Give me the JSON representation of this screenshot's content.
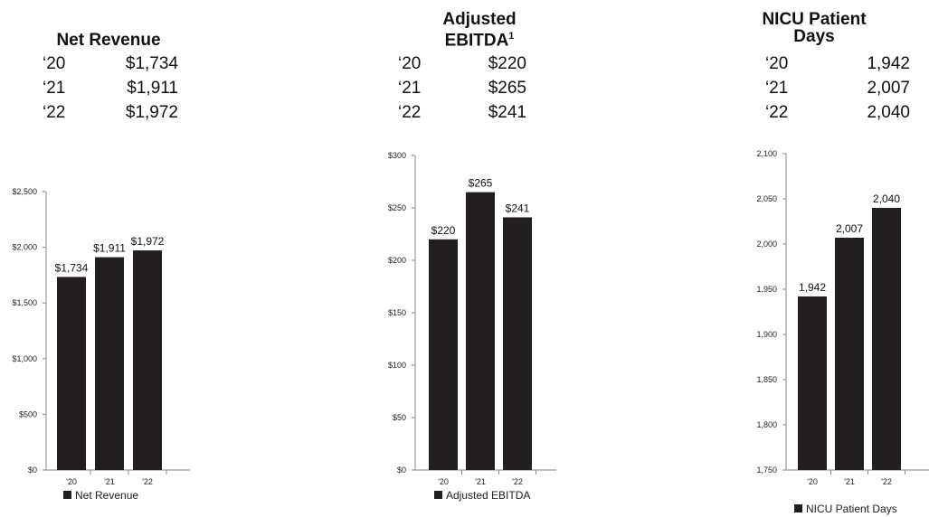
{
  "tables": [
    {
      "title": "Net Revenue",
      "rows": [
        {
          "year": "‘20",
          "value": "$1,734"
        },
        {
          "year": "‘21",
          "value": "$1,911"
        },
        {
          "year": "‘22",
          "value": "$1,972"
        }
      ]
    },
    {
      "title_line1": "Adjusted",
      "title_line2": "EBITDA",
      "title_sup": "1",
      "rows": [
        {
          "year": "‘20",
          "value": "$220"
        },
        {
          "year": "‘21",
          "value": "$265"
        },
        {
          "year": "‘22",
          "value": "$241"
        }
      ]
    },
    {
      "title_line1": "NICU Patient",
      "title_line2": "Days",
      "rows": [
        {
          "year": "‘20",
          "value": "1,942"
        },
        {
          "year": "‘21",
          "value": "2,007"
        },
        {
          "year": "‘22",
          "value": "2,040"
        }
      ]
    }
  ],
  "chart_data": [
    {
      "type": "bar",
      "categories": [
        "'20",
        "'21",
        "'22"
      ],
      "values": [
        1734,
        1911,
        1972
      ],
      "labels": [
        "$1,734",
        "$1,911",
        "$1,972"
      ],
      "yticks": [
        "$0",
        "$500",
        "$1,000",
        "$1,500",
        "$2,000",
        "$2,500"
      ],
      "ylim": [
        0,
        2500
      ],
      "legend": "Net Revenue",
      "bar_color": "#231f20"
    },
    {
      "type": "bar",
      "categories": [
        "'20",
        "'21",
        "'22"
      ],
      "values": [
        220,
        265,
        241
      ],
      "labels": [
        "$220",
        "$265",
        "$241"
      ],
      "yticks": [
        "$0",
        "$50",
        "$100",
        "$150",
        "$200",
        "$250",
        "$300"
      ],
      "ylim": [
        0,
        300
      ],
      "legend": "Adjusted EBITDA",
      "bar_color": "#231f20"
    },
    {
      "type": "bar",
      "categories": [
        "'20",
        "'21",
        "'22"
      ],
      "values": [
        1942,
        2007,
        2040
      ],
      "labels": [
        "1,942",
        "2,007",
        "2,040"
      ],
      "yticks": [
        "1,750",
        "1,800",
        "1,850",
        "1,900",
        "1,950",
        "2,000",
        "2,050",
        "2,100"
      ],
      "ylim": [
        1750,
        2100
      ],
      "legend": "NICU Patient Days",
      "bar_color": "#231f20"
    }
  ]
}
